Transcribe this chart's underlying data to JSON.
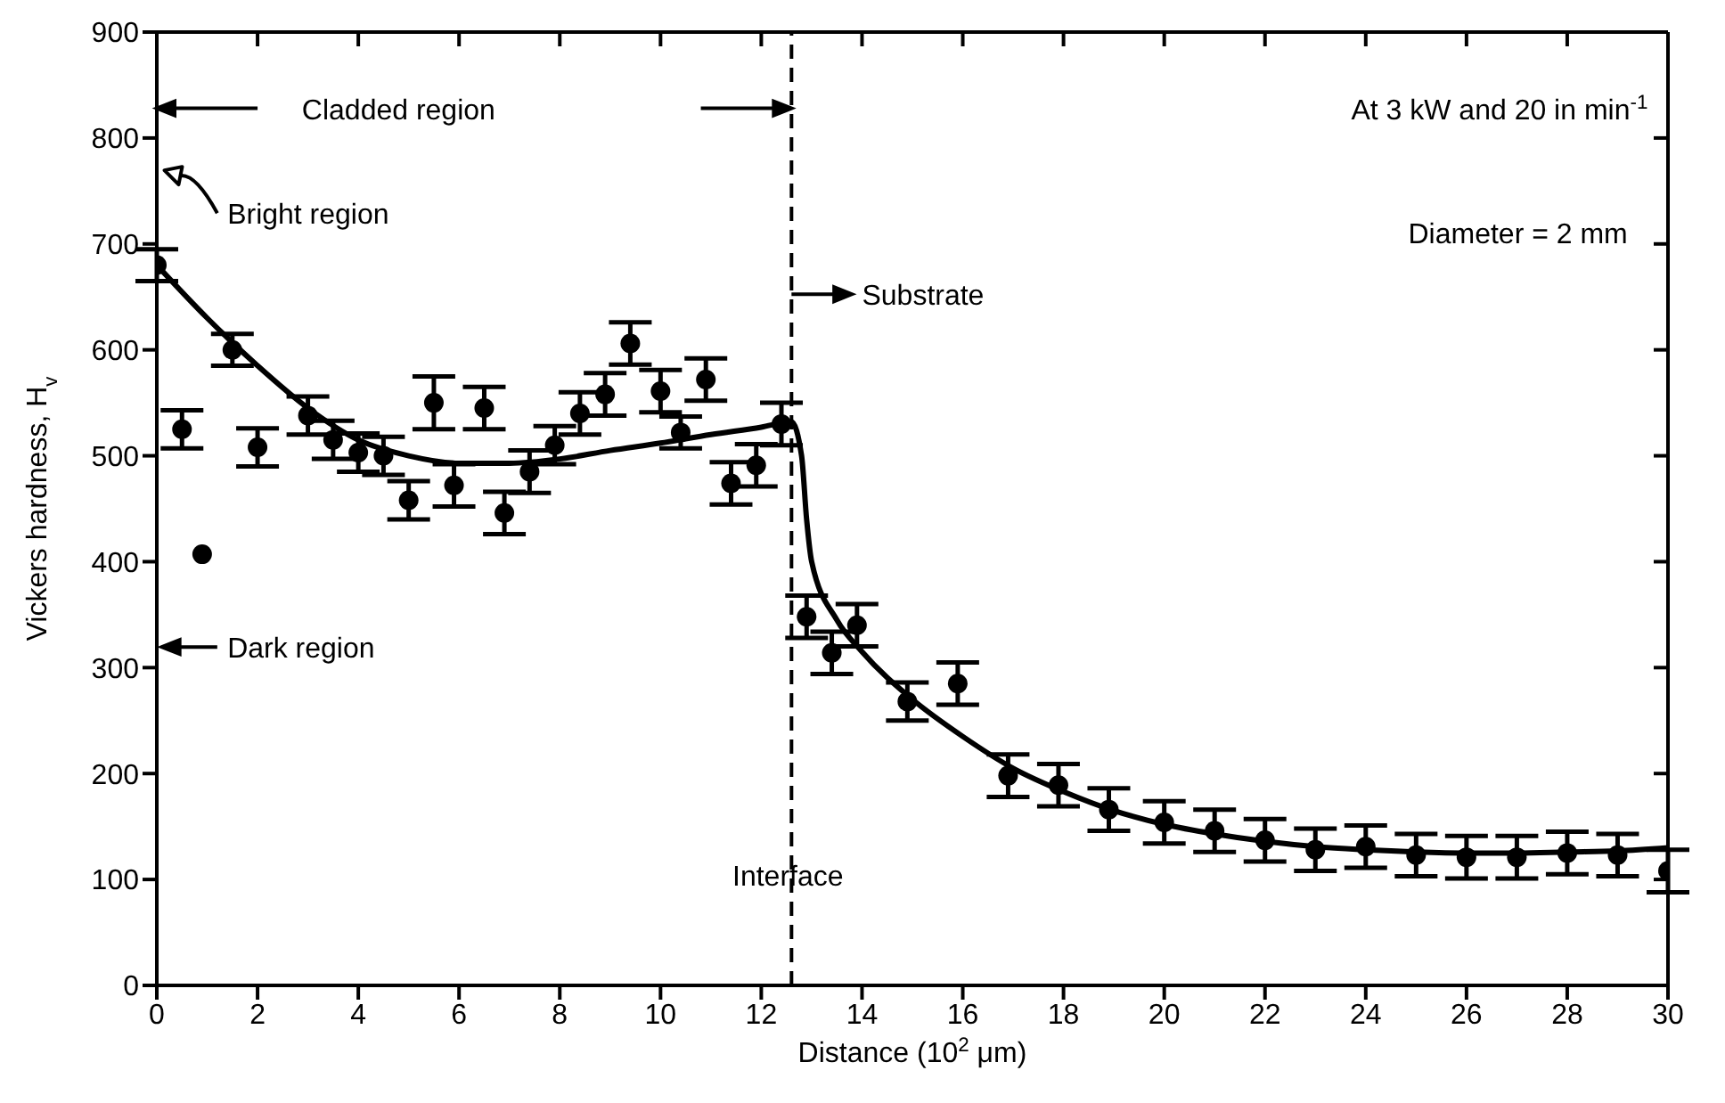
{
  "chart_data": {
    "type": "scatter",
    "xlabel": "Distance (10$^{2}$ μm)",
    "ylabel": "Vickers hardness, H$_{v}$",
    "xlim": [
      0,
      30
    ],
    "ylim": [
      0,
      900
    ],
    "xticks": [
      0,
      2,
      4,
      6,
      8,
      10,
      12,
      14,
      16,
      18,
      20,
      22,
      24,
      26,
      28,
      30
    ],
    "yticks": [
      0,
      100,
      200,
      300,
      400,
      500,
      600,
      700,
      800,
      900
    ],
    "series": [
      {
        "color": "#000000",
        "marker": "circle",
        "x": [
          0,
          0.5,
          0.9,
          1.5,
          2,
          3,
          3.5,
          4,
          4.5,
          5,
          5.5,
          5.9,
          6.5,
          6.9,
          7.4,
          7.9,
          8.4,
          8.9,
          9.4,
          10,
          10.4,
          10.9,
          11.4,
          11.9,
          12.4,
          12.9,
          13.4,
          13.9,
          14.9,
          15.9,
          16.9,
          17.9,
          18.9,
          20,
          21,
          22,
          23,
          24,
          25,
          26,
          27,
          28,
          29,
          30
        ],
        "values": [
          680,
          525,
          407,
          600,
          508,
          538,
          515,
          503,
          500,
          458,
          550,
          472,
          545,
          446,
          485,
          510,
          540,
          558,
          606,
          561,
          522,
          572,
          474,
          491,
          530,
          348,
          314,
          340,
          268,
          285,
          198,
          189,
          166,
          154,
          146,
          137,
          128,
          131,
          123,
          121,
          121,
          125,
          123,
          108
        ],
        "errors": [
          15,
          18,
          null,
          15,
          18,
          18,
          18,
          18,
          18,
          18,
          25,
          20,
          20,
          20,
          20,
          18,
          20,
          20,
          20,
          20,
          15,
          20,
          20,
          20,
          20,
          20,
          20,
          20,
          18,
          20,
          20,
          20,
          20,
          20,
          20,
          20,
          20,
          20,
          20,
          20,
          20,
          20,
          20,
          20
        ]
      },
      {
        "type": "line",
        "color": "#000000",
        "marker": "none",
        "line_style": "solid",
        "x": [
          0,
          1,
          2,
          3,
          4,
          5,
          6,
          7,
          8,
          9,
          10,
          11,
          12,
          12.6,
          12.8,
          12.9,
          13,
          13.5,
          14,
          15,
          16,
          17,
          18,
          19,
          20,
          21,
          22,
          23,
          24,
          25,
          26,
          27,
          28,
          29,
          30
        ],
        "values": [
          680,
          630,
          585,
          545,
          515,
          500,
          493,
          493,
          497,
          505,
          512,
          520,
          527,
          532,
          500,
          440,
          400,
          345,
          315,
          270,
          235,
          205,
          183,
          165,
          152,
          143,
          136,
          131,
          128,
          126,
          125,
          125,
          126,
          127,
          130
        ]
      }
    ],
    "ref_lines": [
      {
        "axis": "x",
        "value": 12.6,
        "label": "Interface",
        "line_style": "dashed",
        "color": "#000000"
      }
    ],
    "annotations": [
      "Cladded region",
      "Bright region",
      "Dark region",
      "Substrate",
      "At 3 kW and 20 in min$^{-1}$",
      "Diameter = 2 mm"
    ]
  }
}
